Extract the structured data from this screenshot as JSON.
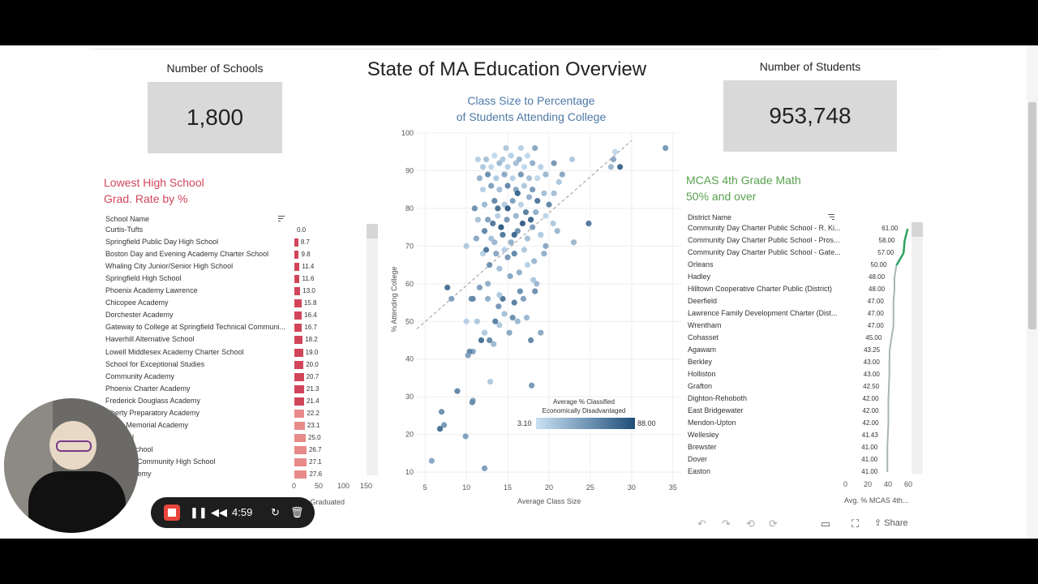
{
  "dashboard": {
    "title": "State of MA Education Overview",
    "kpis": {
      "schools_label": "Number of Schools",
      "schools_value": "1,800",
      "students_label": "Number of Students",
      "students_value": "953,748"
    }
  },
  "grad_panel": {
    "title_line1": "Lowest High School",
    "title_line2": "Grad. Rate by %",
    "column_header": "School Name",
    "axis_label": "% Graduated",
    "axis_ticks": [
      "0",
      "50",
      "100",
      "150"
    ],
    "bar_color": "#d1455a",
    "rows": [
      {
        "name": "Curtis-Tufts",
        "value": "0.0"
      },
      {
        "name": "Springfield Public Day High School",
        "value": "8.7"
      },
      {
        "name": "Boston Day and Evening Academy Charter School",
        "value": "9.8"
      },
      {
        "name": "Whaling City Junior/Senior High School",
        "value": "11.4"
      },
      {
        "name": "Springfield High School",
        "value": "11.6"
      },
      {
        "name": "Phoenix Academy Lawrence",
        "value": "13.0"
      },
      {
        "name": "Chicopee Academy",
        "value": "15.8"
      },
      {
        "name": "Dorchester Academy",
        "value": "16.4"
      },
      {
        "name": "Gateway to College at Springfield Technical Communi...",
        "value": "16.7"
      },
      {
        "name": "Haverhill Alternative School",
        "value": "18.2"
      },
      {
        "name": "Lowell Middlesex Academy Charter School",
        "value": "19.0"
      },
      {
        "name": "School for Exceptional Studies",
        "value": "20.0"
      },
      {
        "name": "Community Academy",
        "value": "20.7"
      },
      {
        "name": "Phoenix Charter Academy",
        "value": "21.3"
      },
      {
        "name": "Frederick Douglass Academy",
        "value": "21.4"
      },
      {
        "name": "Liberty Preparatory Academy",
        "value": "22.2"
      },
      {
        "name": "Smith Memorial Academy",
        "value": "23.1"
      },
      {
        "name": "...School",
        "value": "25.0"
      },
      {
        "name": "... High School",
        "value": "26.7"
      },
      {
        "name": "...gleston Community High School",
        "value": "27.1"
      },
      {
        "name": "...ult Academy",
        "value": "27.6"
      }
    ]
  },
  "scatter_panel": {
    "subtitle_line1": "Class Size to Percentage",
    "subtitle_line2": "of Students Attending College",
    "legend_title_line1": "Average % Classified",
    "legend_title_line2": "Economically Disadvantaged",
    "legend_min": "3.10",
    "legend_max": "88.00"
  },
  "mcas_panel": {
    "title_line1": "MCAS 4th Grade Math",
    "title_line2": "50% and over",
    "column_header": "District Name",
    "axis_label": "Avg. % MCAS 4th...",
    "axis_ticks": [
      "0",
      "20",
      "40",
      "60"
    ],
    "line_color": "#2ca25f",
    "rows": [
      {
        "name": "Community Day Charter Public School - R. Ki...",
        "value": "61.00"
      },
      {
        "name": "Community Day Charter Public School - Pros...",
        "value": "58.00"
      },
      {
        "name": "Community Day Charter Public School - Gate...",
        "value": "57.00"
      },
      {
        "name": "Orleans",
        "value": "50.00"
      },
      {
        "name": "Hadley",
        "value": "48.00"
      },
      {
        "name": "Hilltown Cooperative Charter Public (District)",
        "value": "48.00"
      },
      {
        "name": "Deerfield",
        "value": "47.00"
      },
      {
        "name": "Lawrence Family Development Charter (Dist...",
        "value": "47.00"
      },
      {
        "name": "Wrentham",
        "value": "47.00"
      },
      {
        "name": "Cohasset",
        "value": "45.00"
      },
      {
        "name": "Agawam",
        "value": "43.25"
      },
      {
        "name": "Berkley",
        "value": "43.00"
      },
      {
        "name": "Holliston",
        "value": "43.00"
      },
      {
        "name": "Grafton",
        "value": "42.50"
      },
      {
        "name": "Dighton-Rehoboth",
        "value": "42.00"
      },
      {
        "name": "East Bridgewater",
        "value": "42.00"
      },
      {
        "name": "Mendon-Upton",
        "value": "42.00"
      },
      {
        "name": "Wellesley",
        "value": "41.43"
      },
      {
        "name": "Brewster",
        "value": "41.00"
      },
      {
        "name": "Dover",
        "value": "41.00"
      },
      {
        "name": "Easton",
        "value": "41.00"
      }
    ]
  },
  "chart_data": {
    "type": "scatter",
    "title": "Class Size to Percentage of Students Attending College",
    "xlabel": "Average Class Size",
    "ylabel": "% Attending College",
    "xlim": [
      4,
      36
    ],
    "ylim": [
      7,
      100
    ],
    "x_ticks": [
      5,
      10,
      15,
      20,
      25,
      30,
      35
    ],
    "y_ticks": [
      10,
      20,
      30,
      40,
      50,
      60,
      70,
      80,
      90,
      100
    ],
    "grid": true,
    "trend_line": {
      "x": [
        4,
        30
      ],
      "y": [
        48,
        98
      ]
    },
    "color_scale": {
      "min": 3.1,
      "max": 88.0,
      "low_color": "#c9e1f4",
      "high_color": "#1f4e79"
    },
    "points": [
      {
        "x": 34.1,
        "y": 96,
        "c": 50
      },
      {
        "x": 28.6,
        "y": 91,
        "c": 80
      },
      {
        "x": 27.8,
        "y": 93,
        "c": 40
      },
      {
        "x": 27.5,
        "y": 91,
        "c": 30
      },
      {
        "x": 28.0,
        "y": 95,
        "c": 10
      },
      {
        "x": 24.8,
        "y": 76,
        "c": 70
      },
      {
        "x": 23.0,
        "y": 71,
        "c": 30
      },
      {
        "x": 22.8,
        "y": 93,
        "c": 20
      },
      {
        "x": 21.0,
        "y": 74,
        "c": 30
      },
      {
        "x": 20.5,
        "y": 76,
        "c": 20
      },
      {
        "x": 21.6,
        "y": 89,
        "c": 40
      },
      {
        "x": 20.6,
        "y": 84,
        "c": 25
      },
      {
        "x": 19.4,
        "y": 68,
        "c": 35
      },
      {
        "x": 19.0,
        "y": 47,
        "c": 40
      },
      {
        "x": 18.5,
        "y": 60,
        "c": 30
      },
      {
        "x": 17.8,
        "y": 45,
        "c": 60
      },
      {
        "x": 17.9,
        "y": 33,
        "c": 50
      },
      {
        "x": 16.2,
        "y": 50,
        "c": 30
      },
      {
        "x": 16.5,
        "y": 58,
        "c": 55
      },
      {
        "x": 15.8,
        "y": 55,
        "c": 65
      },
      {
        "x": 15.3,
        "y": 62,
        "c": 40
      },
      {
        "x": 14.4,
        "y": 56,
        "c": 70
      },
      {
        "x": 14.0,
        "y": 49,
        "c": 20
      },
      {
        "x": 13.9,
        "y": 54,
        "c": 50
      },
      {
        "x": 13.3,
        "y": 44,
        "c": 30
      },
      {
        "x": 12.8,
        "y": 45,
        "c": 60
      },
      {
        "x": 12.2,
        "y": 47,
        "c": 20
      },
      {
        "x": 11.8,
        "y": 45,
        "c": 75
      },
      {
        "x": 11.3,
        "y": 50,
        "c": 20
      },
      {
        "x": 10.8,
        "y": 42,
        "c": 40
      },
      {
        "x": 10.4,
        "y": 42,
        "c": 60
      },
      {
        "x": 10.2,
        "y": 41,
        "c": 45
      },
      {
        "x": 10.0,
        "y": 50,
        "c": 15
      },
      {
        "x": 10.8,
        "y": 56,
        "c": 55
      },
      {
        "x": 11.6,
        "y": 59,
        "c": 45
      },
      {
        "x": 12.6,
        "y": 60,
        "c": 35
      },
      {
        "x": 12.9,
        "y": 34,
        "c": 20
      },
      {
        "x": 10.8,
        "y": 29,
        "c": 40
      },
      {
        "x": 10.7,
        "y": 28.5,
        "c": 55
      },
      {
        "x": 8.9,
        "y": 31.5,
        "c": 60
      },
      {
        "x": 9.9,
        "y": 19.5,
        "c": 45
      },
      {
        "x": 7.0,
        "y": 26,
        "c": 55
      },
      {
        "x": 7.3,
        "y": 22.5,
        "c": 50
      },
      {
        "x": 6.8,
        "y": 21.5,
        "c": 75
      },
      {
        "x": 5.8,
        "y": 13,
        "c": 40
      },
      {
        "x": 12.2,
        "y": 11,
        "c": 45
      },
      {
        "x": 7.7,
        "y": 59,
        "c": 75
      },
      {
        "x": 8.2,
        "y": 56,
        "c": 45
      },
      {
        "x": 10.6,
        "y": 56,
        "c": 55
      },
      {
        "x": 12.6,
        "y": 56,
        "c": 35
      },
      {
        "x": 14.0,
        "y": 57,
        "c": 20
      },
      {
        "x": 13.5,
        "y": 50,
        "c": 65
      },
      {
        "x": 14.6,
        "y": 52,
        "c": 25
      },
      {
        "x": 15.2,
        "y": 47,
        "c": 40
      },
      {
        "x": 15.6,
        "y": 51,
        "c": 55
      },
      {
        "x": 16.9,
        "y": 56,
        "c": 45
      },
      {
        "x": 17.3,
        "y": 51,
        "c": 30
      },
      {
        "x": 18.1,
        "y": 61,
        "c": 20
      },
      {
        "x": 18.3,
        "y": 58,
        "c": 55
      },
      {
        "x": 17.4,
        "y": 65,
        "c": 15
      },
      {
        "x": 16.4,
        "y": 63,
        "c": 35
      },
      {
        "x": 15.0,
        "y": 67,
        "c": 50
      },
      {
        "x": 14.0,
        "y": 64,
        "c": 25
      },
      {
        "x": 12.8,
        "y": 65,
        "c": 55
      },
      {
        "x": 12.0,
        "y": 68,
        "c": 15
      },
      {
        "x": 10.0,
        "y": 70,
        "c": 20
      },
      {
        "x": 11.2,
        "y": 72,
        "c": 40
      },
      {
        "x": 12.2,
        "y": 74,
        "c": 60
      },
      {
        "x": 13.4,
        "y": 71,
        "c": 30
      },
      {
        "x": 14.4,
        "y": 73,
        "c": 70
      },
      {
        "x": 15.4,
        "y": 71,
        "c": 35
      },
      {
        "x": 16.2,
        "y": 74,
        "c": 55
      },
      {
        "x": 17.4,
        "y": 72,
        "c": 25
      },
      {
        "x": 18.0,
        "y": 75,
        "c": 45
      },
      {
        "x": 19.0,
        "y": 73,
        "c": 20
      },
      {
        "x": 19.6,
        "y": 78,
        "c": 10
      },
      {
        "x": 18.4,
        "y": 79,
        "c": 35
      },
      {
        "x": 17.2,
        "y": 79,
        "c": 65
      },
      {
        "x": 16.0,
        "y": 78,
        "c": 30
      },
      {
        "x": 14.9,
        "y": 77,
        "c": 50
      },
      {
        "x": 13.8,
        "y": 78,
        "c": 15
      },
      {
        "x": 12.6,
        "y": 77,
        "c": 45
      },
      {
        "x": 11.4,
        "y": 77,
        "c": 25
      },
      {
        "x": 11.0,
        "y": 80,
        "c": 55
      },
      {
        "x": 12.2,
        "y": 81,
        "c": 30
      },
      {
        "x": 13.4,
        "y": 82,
        "c": 60
      },
      {
        "x": 14.6,
        "y": 81,
        "c": 20
      },
      {
        "x": 15.6,
        "y": 82,
        "c": 45
      },
      {
        "x": 16.6,
        "y": 81,
        "c": 15
      },
      {
        "x": 17.6,
        "y": 83,
        "c": 35
      },
      {
        "x": 18.6,
        "y": 82,
        "c": 70
      },
      {
        "x": 19.4,
        "y": 84,
        "c": 25
      },
      {
        "x": 18.0,
        "y": 85,
        "c": 50
      },
      {
        "x": 17.0,
        "y": 86,
        "c": 20
      },
      {
        "x": 16.0,
        "y": 85,
        "c": 40
      },
      {
        "x": 15.0,
        "y": 86,
        "c": 60
      },
      {
        "x": 14.0,
        "y": 85,
        "c": 25
      },
      {
        "x": 13.0,
        "y": 86,
        "c": 45
      },
      {
        "x": 12.0,
        "y": 85,
        "c": 15
      },
      {
        "x": 11.6,
        "y": 88,
        "c": 35
      },
      {
        "x": 12.6,
        "y": 89,
        "c": 55
      },
      {
        "x": 13.6,
        "y": 88,
        "c": 20
      },
      {
        "x": 14.6,
        "y": 89,
        "c": 40
      },
      {
        "x": 15.6,
        "y": 88,
        "c": 15
      },
      {
        "x": 16.6,
        "y": 89,
        "c": 50
      },
      {
        "x": 17.6,
        "y": 88,
        "c": 25
      },
      {
        "x": 18.6,
        "y": 88,
        "c": 10
      },
      {
        "x": 19.6,
        "y": 89,
        "c": 30
      },
      {
        "x": 19.0,
        "y": 91,
        "c": 15
      },
      {
        "x": 18.0,
        "y": 92,
        "c": 35
      },
      {
        "x": 17.0,
        "y": 91,
        "c": 10
      },
      {
        "x": 16.0,
        "y": 92,
        "c": 25
      },
      {
        "x": 15.0,
        "y": 91,
        "c": 15
      },
      {
        "x": 14.0,
        "y": 92,
        "c": 30
      },
      {
        "x": 13.0,
        "y": 91,
        "c": 10
      },
      {
        "x": 12.0,
        "y": 91,
        "c": 20
      },
      {
        "x": 11.4,
        "y": 93,
        "c": 15
      },
      {
        "x": 12.4,
        "y": 93,
        "c": 25
      },
      {
        "x": 13.4,
        "y": 94,
        "c": 10
      },
      {
        "x": 14.4,
        "y": 93,
        "c": 20
      },
      {
        "x": 15.4,
        "y": 94,
        "c": 15
      },
      {
        "x": 16.4,
        "y": 93,
        "c": 30
      },
      {
        "x": 17.4,
        "y": 94,
        "c": 10
      },
      {
        "x": 18.3,
        "y": 96,
        "c": 40
      },
      {
        "x": 16.6,
        "y": 96,
        "c": 15
      },
      {
        "x": 14.8,
        "y": 96,
        "c": 20
      },
      {
        "x": 20.6,
        "y": 92,
        "c": 50
      },
      {
        "x": 21.2,
        "y": 87,
        "c": 20
      },
      {
        "x": 20.0,
        "y": 81,
        "c": 60
      },
      {
        "x": 19.6,
        "y": 70,
        "c": 40
      },
      {
        "x": 18.2,
        "y": 66,
        "c": 30
      },
      {
        "x": 17.0,
        "y": 69,
        "c": 20
      },
      {
        "x": 15.8,
        "y": 68,
        "c": 60
      },
      {
        "x": 14.6,
        "y": 69,
        "c": 15
      },
      {
        "x": 13.6,
        "y": 68,
        "c": 40
      },
      {
        "x": 13.0,
        "y": 72,
        "c": 25
      },
      {
        "x": 16.8,
        "y": 76,
        "c": 85
      },
      {
        "x": 15.0,
        "y": 80,
        "c": 85
      },
      {
        "x": 13.8,
        "y": 80,
        "c": 75
      },
      {
        "x": 16.2,
        "y": 84,
        "c": 80
      },
      {
        "x": 17.8,
        "y": 77,
        "c": 80
      },
      {
        "x": 12.4,
        "y": 69,
        "c": 70
      },
      {
        "x": 14.2,
        "y": 75,
        "c": 88
      },
      {
        "x": 15.8,
        "y": 73,
        "c": 80
      },
      {
        "x": 13.2,
        "y": 76,
        "c": 70
      }
    ]
  }
}
